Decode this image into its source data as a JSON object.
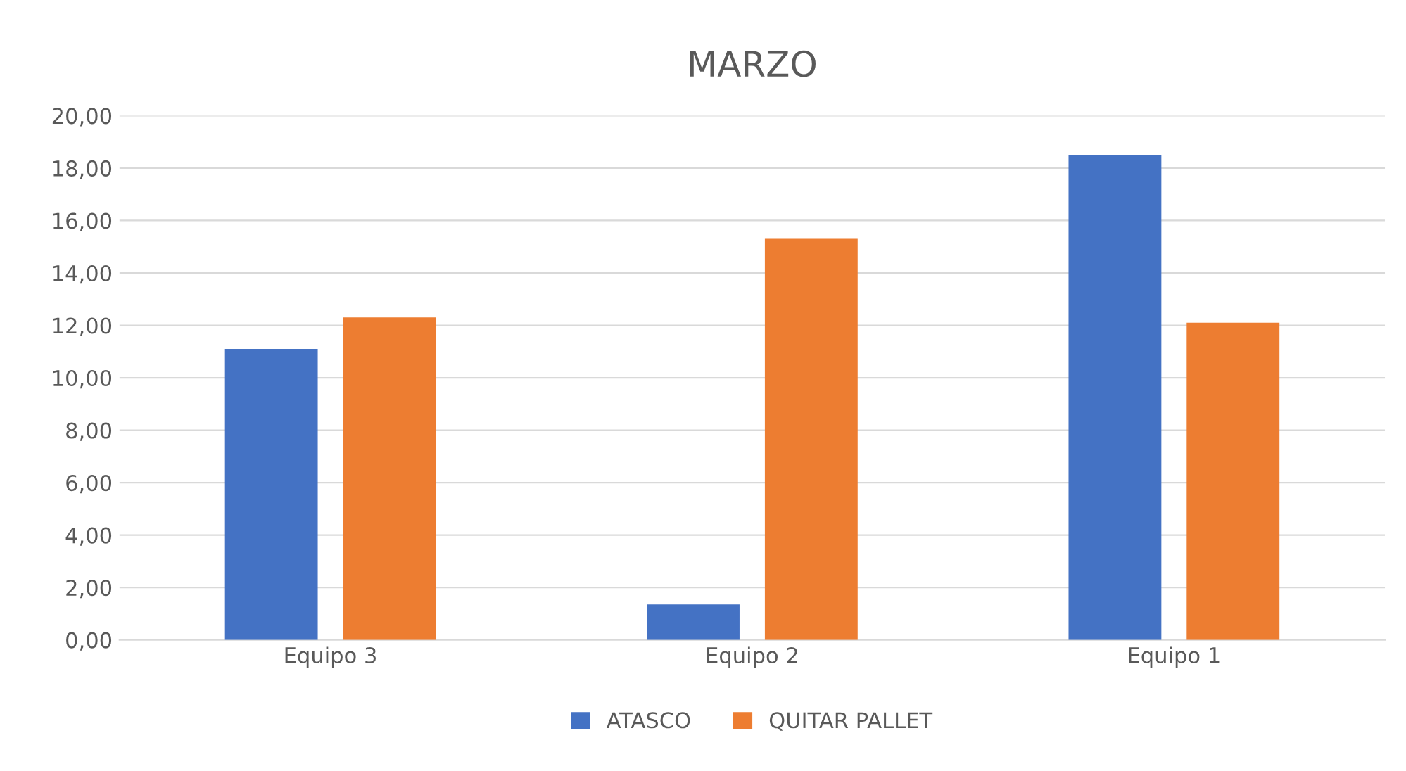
{
  "chart_data": {
    "type": "bar",
    "title": "MARZO",
    "categories": [
      "Equipo 3",
      "Equipo 2",
      "Equipo 1"
    ],
    "series": [
      {
        "name": "ATASCO",
        "color": "#4472c4",
        "values": [
          11.1,
          1.35,
          18.5
        ]
      },
      {
        "name": "QUITAR PALLET",
        "color": "#ed7d31",
        "values": [
          12.3,
          15.3,
          12.1
        ]
      }
    ],
    "ylim": [
      0,
      20
    ],
    "yticks": [
      {
        "value": 0,
        "label": "0,00"
      },
      {
        "value": 2,
        "label": "2,00"
      },
      {
        "value": 4,
        "label": "4,00"
      },
      {
        "value": 6,
        "label": "6,00"
      },
      {
        "value": 8,
        "label": "8,00"
      },
      {
        "value": 10,
        "label": "10,00"
      },
      {
        "value": 12,
        "label": "12,00"
      },
      {
        "value": 14,
        "label": "14,00"
      },
      {
        "value": 16,
        "label": "16,00"
      },
      {
        "value": 18,
        "label": "18,00"
      },
      {
        "value": 20,
        "label": "20,00"
      }
    ],
    "grid": "y",
    "legend": "bottom"
  }
}
